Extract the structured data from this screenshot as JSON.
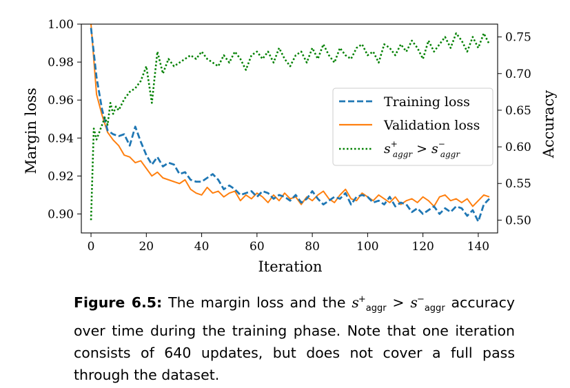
{
  "chart_data": {
    "type": "line",
    "xlabel": "Iteration",
    "ylabel_left": "Margin loss",
    "ylabel_right": "Accuracy",
    "xlim": [
      -3.5,
      147
    ],
    "ylim_left": [
      0.89,
      1.0
    ],
    "ylim_right": [
      0.4825,
      0.7675
    ],
    "x_ticks": [
      0,
      20,
      40,
      60,
      80,
      100,
      120,
      140
    ],
    "y_ticks_left": [
      0.9,
      0.92,
      0.94,
      0.96,
      0.98,
      1.0
    ],
    "y_ticks_right": [
      0.5,
      0.55,
      0.6,
      0.65,
      0.7,
      0.75
    ],
    "y_tick_labels_left": [
      "0.90",
      "0.92",
      "0.94",
      "0.96",
      "0.98",
      "1.00"
    ],
    "y_tick_labels_right": [
      "0.50",
      "0.55",
      "0.60",
      "0.65",
      "0.70",
      "0.75"
    ],
    "legend_position": "center-right",
    "grid": false,
    "series": [
      {
        "name": "Training loss",
        "axis": "left",
        "color": "#1f77b4",
        "style": "dashed",
        "x": [
          0,
          2,
          4,
          6,
          8,
          10,
          12,
          14,
          16,
          18,
          20,
          22,
          24,
          26,
          28,
          30,
          32,
          34,
          36,
          38,
          40,
          42,
          44,
          46,
          48,
          50,
          52,
          54,
          56,
          58,
          60,
          62,
          64,
          66,
          68,
          70,
          72,
          74,
          76,
          78,
          80,
          82,
          84,
          86,
          88,
          90,
          92,
          94,
          96,
          98,
          100,
          102,
          104,
          106,
          108,
          110,
          112,
          114,
          116,
          118,
          120,
          122,
          124,
          126,
          128,
          130,
          132,
          134,
          136,
          138,
          140,
          142,
          144
        ],
        "values": [
          0.998,
          0.972,
          0.955,
          0.944,
          0.942,
          0.941,
          0.942,
          0.936,
          0.946,
          0.938,
          0.931,
          0.926,
          0.93,
          0.925,
          0.927,
          0.926,
          0.921,
          0.922,
          0.918,
          0.917,
          0.917,
          0.919,
          0.921,
          0.918,
          0.913,
          0.915,
          0.913,
          0.91,
          0.911,
          0.912,
          0.909,
          0.912,
          0.911,
          0.908,
          0.91,
          0.909,
          0.907,
          0.91,
          0.906,
          0.908,
          0.912,
          0.908,
          0.905,
          0.907,
          0.909,
          0.908,
          0.911,
          0.905,
          0.909,
          0.91,
          0.909,
          0.906,
          0.907,
          0.905,
          0.909,
          0.904,
          0.906,
          0.905,
          0.901,
          0.903,
          0.9,
          0.902,
          0.904,
          0.9,
          0.903,
          0.901,
          0.904,
          0.903,
          0.899,
          0.902,
          0.896,
          0.905,
          0.908
        ]
      },
      {
        "name": "Validation loss",
        "axis": "left",
        "color": "#ff7f0e",
        "style": "solid",
        "x": [
          0,
          2,
          4,
          6,
          8,
          10,
          12,
          14,
          16,
          18,
          20,
          22,
          24,
          26,
          28,
          30,
          32,
          34,
          36,
          38,
          40,
          42,
          44,
          46,
          48,
          50,
          52,
          54,
          56,
          58,
          60,
          62,
          64,
          66,
          68,
          70,
          72,
          74,
          76,
          78,
          80,
          82,
          84,
          86,
          88,
          90,
          92,
          94,
          96,
          98,
          100,
          102,
          104,
          106,
          108,
          110,
          112,
          114,
          116,
          118,
          120,
          122,
          124,
          126,
          128,
          130,
          132,
          134,
          136,
          138,
          140,
          142,
          144
        ],
        "values": [
          1.0,
          0.963,
          0.952,
          0.943,
          0.939,
          0.936,
          0.931,
          0.93,
          0.927,
          0.928,
          0.924,
          0.92,
          0.922,
          0.919,
          0.918,
          0.917,
          0.916,
          0.918,
          0.913,
          0.911,
          0.91,
          0.914,
          0.911,
          0.912,
          0.909,
          0.911,
          0.912,
          0.907,
          0.91,
          0.908,
          0.911,
          0.909,
          0.906,
          0.91,
          0.907,
          0.911,
          0.908,
          0.909,
          0.905,
          0.909,
          0.907,
          0.91,
          0.912,
          0.908,
          0.906,
          0.91,
          0.913,
          0.908,
          0.907,
          0.911,
          0.909,
          0.907,
          0.91,
          0.908,
          0.906,
          0.909,
          0.905,
          0.907,
          0.908,
          0.906,
          0.909,
          0.907,
          0.904,
          0.909,
          0.91,
          0.907,
          0.908,
          0.906,
          0.908,
          0.904,
          0.907,
          0.91,
          0.909
        ]
      },
      {
        "name": "s+aggr > s−aggr",
        "axis": "right",
        "color": "#008000",
        "style": "dotted",
        "x": [
          0,
          1,
          2,
          3,
          4,
          5,
          6,
          7,
          8,
          9,
          10,
          12,
          14,
          16,
          18,
          20,
          22,
          24,
          26,
          28,
          30,
          32,
          34,
          36,
          38,
          40,
          42,
          44,
          46,
          48,
          50,
          52,
          54,
          56,
          58,
          60,
          62,
          64,
          66,
          68,
          70,
          72,
          74,
          76,
          78,
          80,
          82,
          84,
          86,
          88,
          90,
          92,
          94,
          96,
          98,
          100,
          102,
          104,
          106,
          108,
          110,
          112,
          114,
          116,
          118,
          120,
          122,
          124,
          126,
          128,
          130,
          132,
          134,
          136,
          138,
          140,
          142,
          144
        ],
        "values": [
          0.5,
          0.625,
          0.61,
          0.62,
          0.63,
          0.64,
          0.63,
          0.66,
          0.645,
          0.655,
          0.65,
          0.665,
          0.675,
          0.68,
          0.69,
          0.71,
          0.66,
          0.73,
          0.7,
          0.72,
          0.71,
          0.715,
          0.72,
          0.725,
          0.72,
          0.73,
          0.72,
          0.715,
          0.71,
          0.725,
          0.715,
          0.73,
          0.72,
          0.705,
          0.725,
          0.73,
          0.72,
          0.73,
          0.715,
          0.735,
          0.72,
          0.71,
          0.725,
          0.73,
          0.715,
          0.735,
          0.72,
          0.74,
          0.725,
          0.715,
          0.735,
          0.725,
          0.72,
          0.735,
          0.74,
          0.725,
          0.73,
          0.715,
          0.74,
          0.735,
          0.725,
          0.74,
          0.73,
          0.745,
          0.735,
          0.72,
          0.745,
          0.73,
          0.74,
          0.75,
          0.735,
          0.755,
          0.745,
          0.73,
          0.75,
          0.735,
          0.755,
          0.74
        ]
      }
    ]
  },
  "legend": [
    {
      "label": "Training loss"
    },
    {
      "label": "Validation loss"
    },
    {
      "label_s": "s",
      "label_sup1": "+",
      "label_sub1": "aggr",
      "label_op": ">",
      "label_sup2": "−",
      "label_sub2": "aggr"
    }
  ],
  "caption": {
    "label": "Figure 6.5:",
    "text_before": "The margin loss and the",
    "s_symbol": "s",
    "sup_plus": "+",
    "sub_aggr": "aggr",
    "op": ">",
    "sup_minus": "−",
    "text_after": "accuracy over time during the training phase. Note that one iteration consists of 640 updates, but does not cover a full pass through the dataset."
  }
}
